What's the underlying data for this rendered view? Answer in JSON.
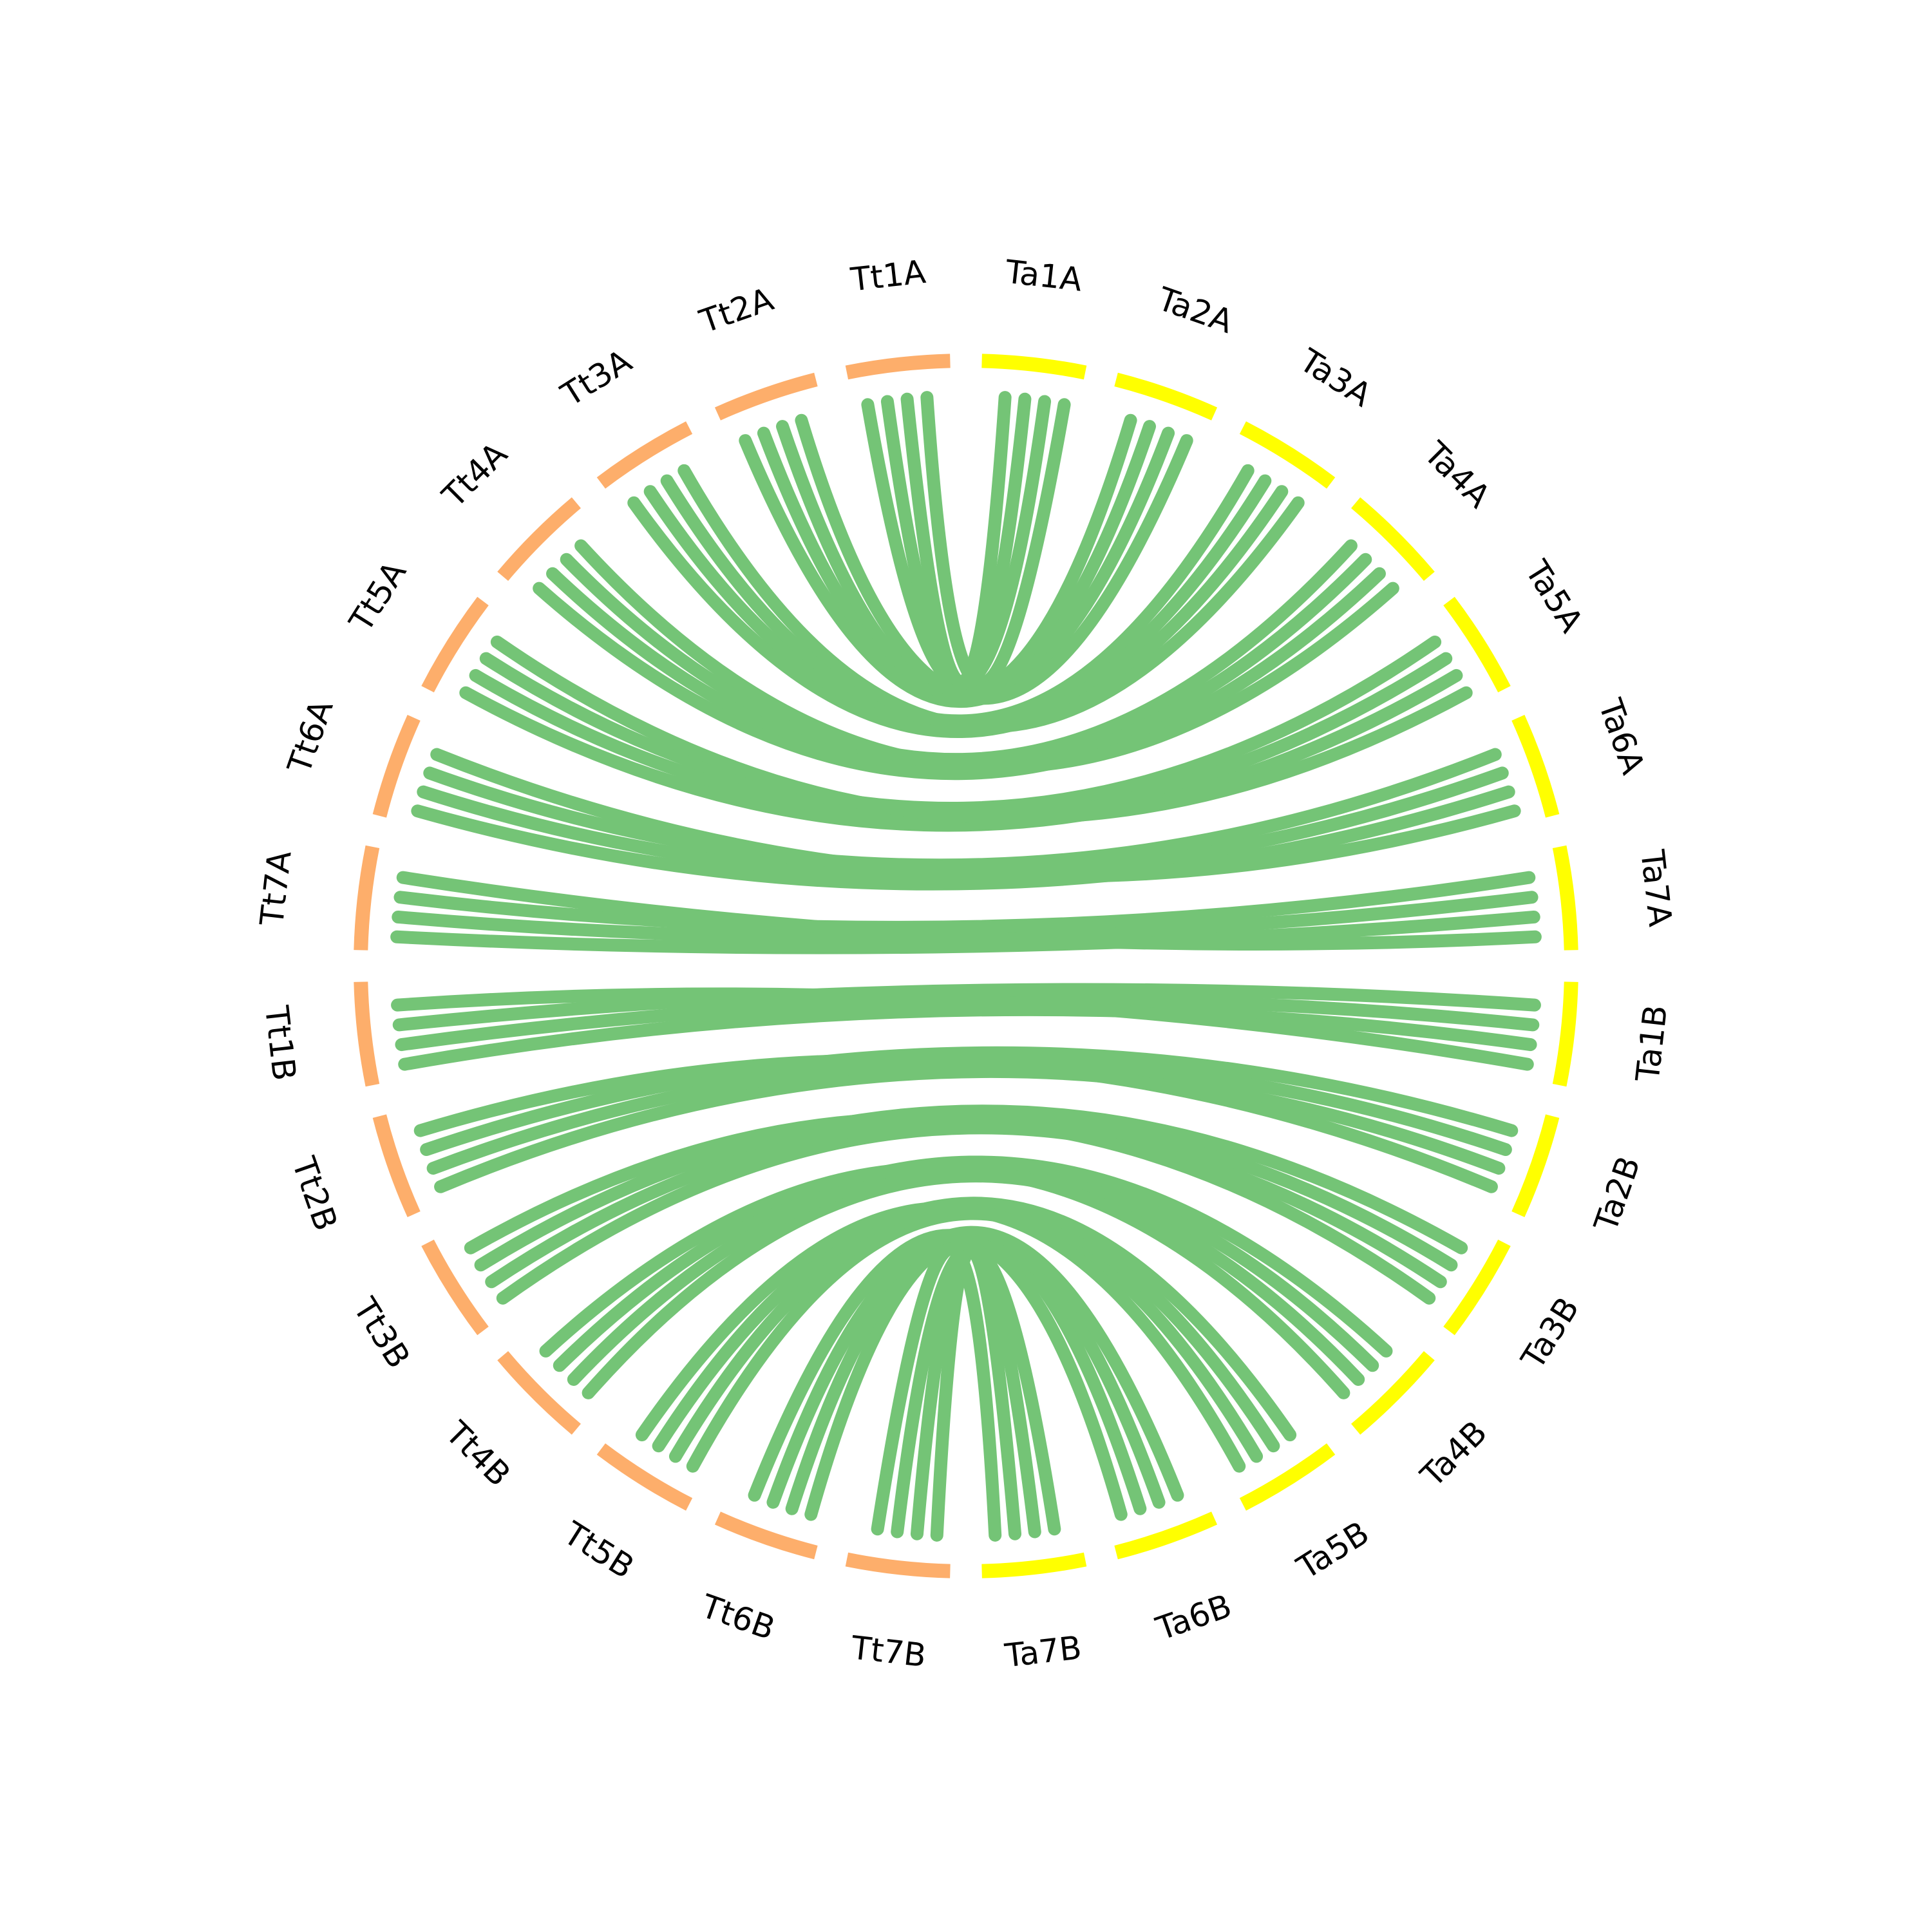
{
  "segments_a": {
    "color": "#fdae6b",
    "labels": [
      "Tt1A",
      "Tt2A",
      "Tt3A",
      "Tt4A",
      "Tt5A",
      "Tt6A",
      "Tt7A",
      "Tt1B",
      "Tt2B",
      "Tt3B",
      "Tt4B",
      "Tt5B",
      "Tt6B",
      "Tt7B"
    ]
  },
  "segments_b": {
    "color": "#ffff00",
    "labels": [
      "Ta1A",
      "Ta2A",
      "Ta3A",
      "Ta4A",
      "Ta5A",
      "Ta6A",
      "Ta7A",
      "Ta1B",
      "Ta2B",
      "Ta3B",
      "Ta4B",
      "Ta5B",
      "Ta6B",
      "Ta7B"
    ]
  },
  "links": {
    "color": "#74c476"
  }
}
